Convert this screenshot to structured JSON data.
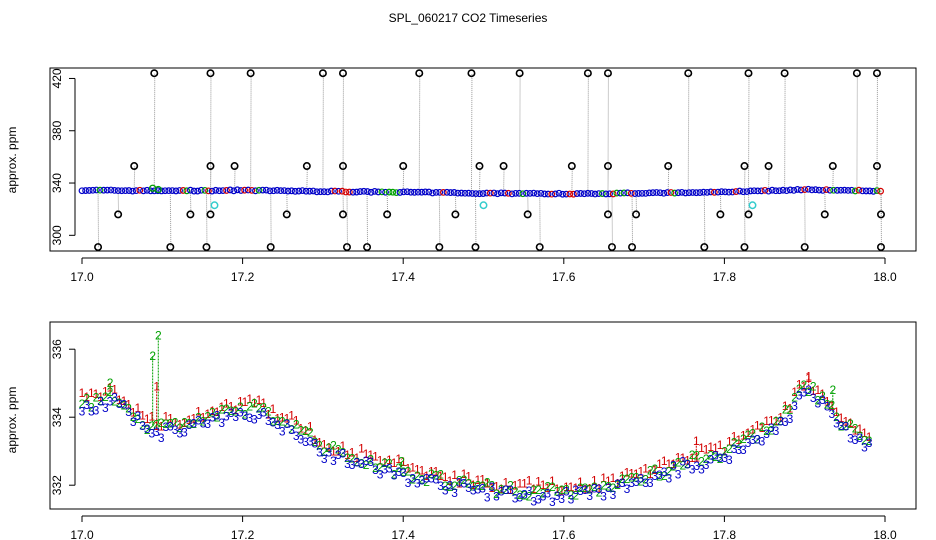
{
  "title": "SPL_060217  CO2 Timeseries",
  "colors": {
    "axis": "#000000",
    "series1": "#d40000",
    "series2": "#00a000",
    "series3": "#0000c8",
    "outlier": "#000000",
    "cyan": "#33cccc",
    "trace": "#999999"
  },
  "chart_data": [
    {
      "type": "scatter",
      "title": "SPL_060217  CO2 Timeseries",
      "xlabel": "",
      "ylabel": "approx. ppm",
      "xlim": [
        17.0,
        18.0
      ],
      "ylim": [
        288,
        428
      ],
      "xticks": [
        17.0,
        17.2,
        17.4,
        17.6,
        17.8,
        18.0
      ],
      "xtick_labels": [
        "17.0",
        "17.2",
        "17.4",
        "17.6",
        "17.8",
        "18.0"
      ],
      "yticks": [
        300,
        340,
        380,
        420
      ],
      "ytick_labels": [
        "300",
        "340",
        "380",
        "420"
      ],
      "baseline": [
        [
          17.0,
          334.5
        ],
        [
          17.1,
          334
        ],
        [
          17.16,
          334.2
        ],
        [
          17.2,
          334.5
        ],
        [
          17.3,
          333.6
        ],
        [
          17.4,
          333
        ],
        [
          17.5,
          332.2
        ],
        [
          17.6,
          331.8
        ],
        [
          17.66,
          332
        ],
        [
          17.75,
          332.6
        ],
        [
          17.85,
          334
        ],
        [
          17.9,
          335
        ],
        [
          17.99,
          334
        ]
      ],
      "outliers_high": [
        17.09,
        17.16,
        17.21,
        17.3,
        17.325,
        17.42,
        17.485,
        17.545,
        17.63,
        17.655,
        17.755,
        17.83,
        17.875,
        17.965,
        17.99
      ],
      "outliers_mid_high": [
        17.065,
        17.16,
        17.19,
        17.28,
        17.325,
        17.4,
        17.495,
        17.525,
        17.61,
        17.655,
        17.73,
        17.825,
        17.855,
        17.935,
        17.99
      ],
      "outliers_mid_low": [
        17.045,
        17.135,
        17.16,
        17.255,
        17.325,
        17.38,
        17.465,
        17.555,
        17.655,
        17.69,
        17.795,
        17.83,
        17.925,
        17.995
      ],
      "outliers_low": [
        17.02,
        17.11,
        17.155,
        17.235,
        17.33,
        17.355,
        17.445,
        17.49,
        17.57,
        17.66,
        17.685,
        17.775,
        17.825,
        17.9,
        17.995
      ],
      "cyan_points": [
        [
          17.165,
          323
        ],
        [
          17.5,
          323
        ],
        [
          17.835,
          323
        ]
      ],
      "green_points": [
        [
          17.088,
          336
        ],
        [
          17.095,
          335
        ]
      ]
    },
    {
      "type": "scatter",
      "xlabel": "",
      "ylabel": "approx. ppm",
      "xlim": [
        17.0,
        18.0
      ],
      "ylim": [
        331.3,
        336.8
      ],
      "xticks": [
        17.0,
        17.2,
        17.4,
        17.6,
        17.8,
        18.0
      ],
      "xtick_labels": [
        "17.0",
        "17.2",
        "17.4",
        "17.6",
        "17.8",
        "18.0"
      ],
      "yticks": [
        332,
        334,
        336
      ],
      "ytick_labels": [
        "332",
        "334",
        "336"
      ],
      "series": [
        {
          "name": "1",
          "marker": "1"
        },
        {
          "name": "2",
          "marker": "2"
        },
        {
          "name": "3",
          "marker": "3"
        }
      ],
      "trend": [
        [
          17.0,
          334.4
        ],
        [
          17.02,
          334.5
        ],
        [
          17.04,
          334.6
        ],
        [
          17.06,
          334.2
        ],
        [
          17.08,
          333.8
        ],
        [
          17.1,
          333.7
        ],
        [
          17.14,
          333.9
        ],
        [
          17.18,
          334.1
        ],
        [
          17.21,
          334.3
        ],
        [
          17.24,
          334.0
        ],
        [
          17.27,
          333.7
        ],
        [
          17.3,
          333.1
        ],
        [
          17.33,
          332.9
        ],
        [
          17.37,
          332.6
        ],
        [
          17.42,
          332.3
        ],
        [
          17.46,
          332.1
        ],
        [
          17.52,
          331.9
        ],
        [
          17.58,
          331.8
        ],
        [
          17.64,
          331.9
        ],
        [
          17.68,
          332.1
        ],
        [
          17.72,
          332.4
        ],
        [
          17.75,
          332.7
        ],
        [
          17.78,
          332.8
        ],
        [
          17.82,
          333.2
        ],
        [
          17.85,
          333.6
        ],
        [
          17.88,
          334.2
        ],
        [
          17.9,
          334.9
        ],
        [
          17.92,
          334.6
        ],
        [
          17.94,
          334.0
        ],
        [
          17.96,
          333.6
        ],
        [
          17.98,
          333.3
        ]
      ],
      "spikes": [
        {
          "series": "2",
          "x": 17.035,
          "y": 335.0
        },
        {
          "series": "2",
          "x": 17.088,
          "y": 335.8
        },
        {
          "series": "2",
          "x": 17.095,
          "y": 336.4
        },
        {
          "series": "1",
          "x": 17.093,
          "y": 334.9
        },
        {
          "series": "2",
          "x": 17.398,
          "y": 332.7
        },
        {
          "series": "1",
          "x": 17.765,
          "y": 333.3
        },
        {
          "series": "1",
          "x": 17.905,
          "y": 335.2
        },
        {
          "series": "2",
          "x": 17.935,
          "y": 334.8
        }
      ]
    }
  ]
}
